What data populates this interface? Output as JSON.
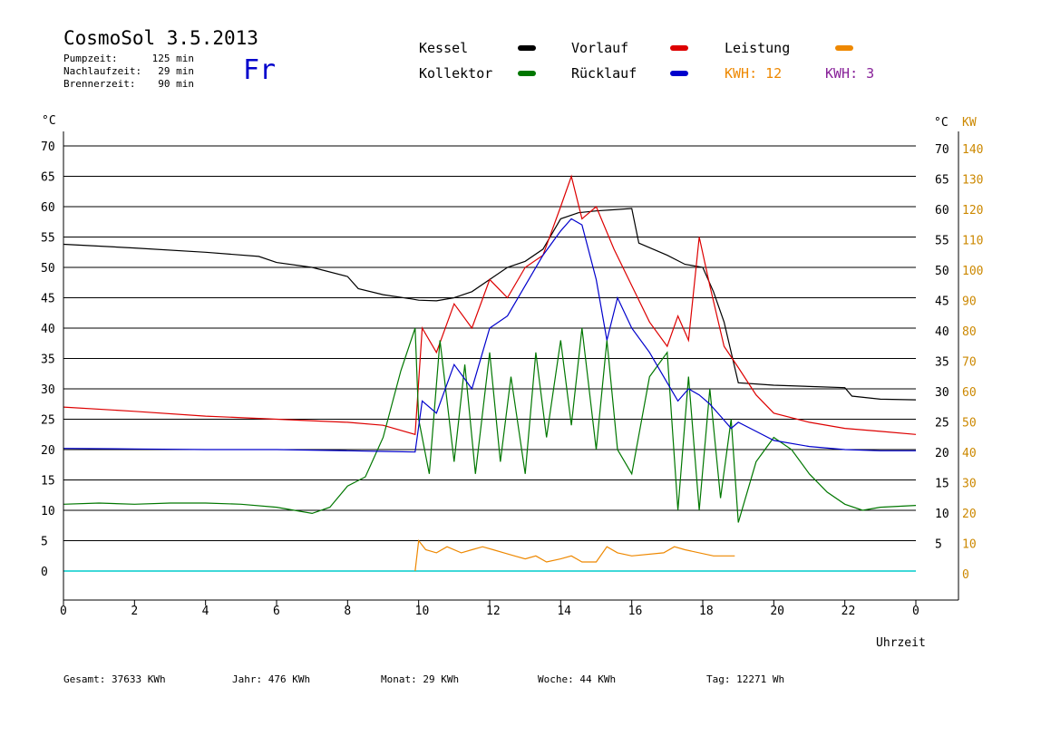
{
  "header": {
    "title": "CosmoSol 3.5.2013",
    "day": "Fr",
    "info": [
      {
        "label": "Pumpzeit:",
        "value": "125 min"
      },
      {
        "label": "Nachlaufzeit:",
        "value": "29 min"
      },
      {
        "label": "Brennerzeit:",
        "value": "90 min"
      }
    ]
  },
  "legend": {
    "items": [
      {
        "label": "Kessel",
        "color": "#000000"
      },
      {
        "label": "Vorlauf",
        "color": "#dd0000"
      },
      {
        "label": "Leistung",
        "color": "#ee8800"
      },
      {
        "label": "Kollektor",
        "color": "#007700"
      },
      {
        "label": "Rücklauf",
        "color": "#0000cc"
      }
    ],
    "kwh1": {
      "label": "KWH:",
      "value": "12",
      "color": "#ee8800"
    },
    "kwh2": {
      "label": "KWH:",
      "value": "3",
      "color": "#882299"
    }
  },
  "axes": {
    "y_left_unit": "°C",
    "y_right_unit": "°C",
    "y_right2_unit": "KW",
    "x_label": "Uhrzeit"
  },
  "footer": [
    {
      "label": "Gesamt:",
      "value": "37633 KWh"
    },
    {
      "label": "Jahr:",
      "value": "476 KWh"
    },
    {
      "label": "Monat:",
      "value": "29 KWh"
    },
    {
      "label": "Woche:",
      "value": "44 KWh"
    },
    {
      "label": "Tag:",
      "value": "12271 Wh"
    }
  ],
  "chart_data": {
    "type": "line",
    "title": "CosmoSol 3.5.2013",
    "xlabel": "Uhrzeit",
    "ylabel": "°C",
    "xlim": [
      0,
      24
    ],
    "ylim": [
      0,
      70
    ],
    "y2lim": [
      0,
      140
    ],
    "grid": true,
    "x_ticks": [
      "0",
      "2",
      "4",
      "6",
      "8",
      "10",
      "12",
      "14",
      "16",
      "18",
      "20",
      "22",
      "0"
    ],
    "y_ticks": [
      0,
      5,
      10,
      15,
      20,
      25,
      30,
      35,
      40,
      45,
      50,
      55,
      60,
      65,
      70
    ],
    "y_right_ticks": [
      "",
      "5",
      "10",
      "15",
      "20",
      "25",
      "30",
      "35",
      "40",
      "45",
      "50",
      "55",
      "60",
      "65",
      "70"
    ],
    "y_right2_ticks": [
      "0",
      "10",
      "20",
      "30",
      "40",
      "50",
      "60",
      "70",
      "80",
      "90",
      "100",
      "110",
      "120",
      "130",
      "140"
    ],
    "series": [
      {
        "name": "Kessel",
        "color": "#000000",
        "x": [
          0,
          2,
          4,
          5.5,
          6,
          7,
          8,
          8.3,
          9,
          9.8,
          10,
          10.5,
          11,
          11.5,
          12,
          12.5,
          13,
          13.5,
          14,
          14.5,
          15,
          15.5,
          16,
          16.2,
          17,
          17.5,
          18,
          18.3,
          18.6,
          19,
          19.5,
          20,
          22,
          22.2,
          23,
          24
        ],
        "y": [
          53.8,
          53.2,
          52.5,
          51.8,
          50.8,
          50.0,
          48.5,
          46.5,
          45.5,
          44.8,
          44.6,
          44.5,
          45.0,
          46.0,
          48.0,
          50.0,
          51.0,
          53.0,
          58.0,
          59.0,
          59.3,
          59.5,
          59.7,
          54.0,
          52.0,
          50.5,
          50.0,
          46.0,
          41.0,
          31.0,
          30.8,
          30.6,
          30.2,
          28.8,
          28.3,
          28.2
        ]
      },
      {
        "name": "Vorlauf",
        "color": "#dd0000",
        "x": [
          0,
          2,
          4,
          6,
          8,
          9,
          9.9,
          10.1,
          10.5,
          11,
          11.5,
          12,
          12.5,
          13,
          13.5,
          14,
          14.3,
          14.6,
          15,
          15.5,
          16,
          16.5,
          17,
          17.3,
          17.6,
          17.9,
          18.2,
          18.6,
          19,
          19.5,
          20,
          21,
          22,
          23,
          24
        ],
        "y": [
          27.0,
          26.3,
          25.5,
          25.0,
          24.5,
          24.0,
          22.5,
          40.0,
          36.0,
          44.0,
          40.0,
          48.0,
          45.0,
          50.0,
          52.0,
          60.0,
          65.0,
          58.0,
          60.0,
          53.0,
          47.0,
          41.0,
          37.0,
          42.0,
          38.0,
          55.0,
          47.0,
          37.0,
          33.5,
          29.0,
          26.0,
          24.5,
          23.5,
          23.0,
          22.5
        ]
      },
      {
        "name": "Kollektor",
        "color": "#007700",
        "x": [
          0,
          1,
          2,
          3,
          4,
          5,
          6,
          7,
          7.5,
          8,
          8.5,
          9,
          9.5,
          9.9,
          10,
          10.3,
          10.6,
          11,
          11.3,
          11.6,
          12,
          12.3,
          12.6,
          13,
          13.3,
          13.6,
          14,
          14.3,
          14.6,
          15,
          15.3,
          15.6,
          16,
          16.5,
          17,
          17.3,
          17.6,
          17.9,
          18.2,
          18.5,
          18.8,
          19,
          19.5,
          20,
          20.5,
          21,
          21.5,
          22,
          22.5,
          23,
          24
        ],
        "y": [
          11.0,
          11.2,
          11.0,
          11.2,
          11.2,
          11.0,
          10.5,
          9.5,
          10.5,
          14.0,
          15.5,
          22.0,
          33.0,
          40.0,
          25.0,
          16.0,
          38.0,
          18.0,
          34.0,
          16.0,
          36.0,
          18.0,
          32.0,
          16.0,
          36.0,
          22.0,
          38.0,
          24.0,
          40.0,
          20.0,
          38.0,
          20.0,
          16.0,
          32.0,
          36.0,
          10.0,
          32.0,
          10.0,
          30.0,
          12.0,
          25.0,
          8.0,
          18.0,
          22.0,
          20.0,
          16.0,
          13.0,
          11.0,
          10.0,
          10.5,
          10.8
        ]
      },
      {
        "name": "Rücklauf",
        "color": "#0000cc",
        "x": [
          0,
          2,
          4,
          6,
          8,
          9,
          9.9,
          10.1,
          10.5,
          11,
          11.5,
          12,
          12.5,
          13,
          13.5,
          14,
          14.3,
          14.6,
          15,
          15.3,
          15.6,
          16,
          16.5,
          17,
          17.3,
          17.6,
          17.9,
          18.2,
          18.5,
          18.8,
          19,
          19.5,
          20,
          21,
          22,
          23,
          24
        ],
        "y": [
          20.2,
          20.1,
          20.0,
          20.0,
          19.8,
          19.7,
          19.6,
          28.0,
          26.0,
          34.0,
          30.0,
          40.0,
          42.0,
          47.0,
          52.0,
          56.0,
          58.0,
          57.0,
          48.0,
          38.0,
          45.0,
          40.0,
          36.0,
          31.0,
          28.0,
          30.0,
          29.0,
          27.5,
          25.5,
          23.5,
          24.5,
          23.0,
          21.5,
          20.5,
          20.0,
          19.8,
          19.8
        ]
      },
      {
        "name": "Leistung",
        "color": "#ee8800",
        "x": [
          9.9,
          10.0,
          10.2,
          10.5,
          10.8,
          11.2,
          11.5,
          11.8,
          12.1,
          12.4,
          12.7,
          13.0,
          13.3,
          13.6,
          14.0,
          14.3,
          14.6,
          15.0,
          15.3,
          15.6,
          16.0,
          16.9,
          17.2,
          17.5,
          18.3,
          18.9
        ],
        "y": [
          0,
          10,
          7,
          6,
          8,
          6,
          7,
          8,
          7,
          6,
          5,
          4,
          5,
          3,
          4,
          5,
          3,
          3,
          8,
          6,
          5,
          6,
          8,
          7,
          5,
          5
        ]
      }
    ]
  }
}
